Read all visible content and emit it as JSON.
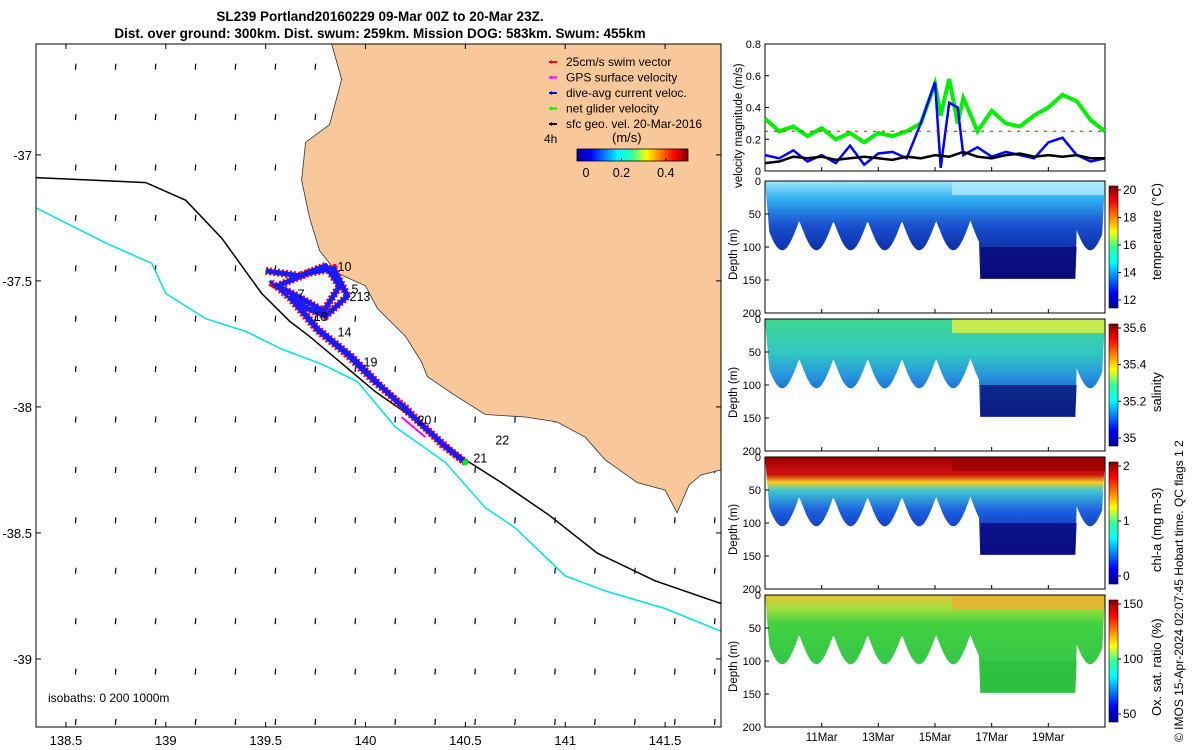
{
  "title": {
    "line1": "SL239 Portland20160229 09-Mar 00Z to 20-Mar 23Z.",
    "line2": "Dist. over ground: 300km. Dist. swum: 259km. Mission DOG: 583km. Swum: 455km"
  },
  "colors": {
    "land": "#f9c89a",
    "swim_vector": "#ff0000",
    "gps_velocity": "#ff00ff",
    "dive_avg_current": "#0000ff",
    "net_glider_velocity": "#00ee00",
    "sfc_geo_vel": "#000000",
    "isobath_200": "#000000",
    "isobath_1000": "#00e0e0",
    "track": "#1a1aff"
  },
  "chart_data": [
    {
      "type": "scatter",
      "name": "map",
      "xlim": [
        138.35,
        141.78
      ],
      "ylim": [
        -39.27,
        -36.56
      ],
      "x_ticks": [
        138.5,
        139,
        139.5,
        140,
        140.5,
        141,
        141.5
      ],
      "x_tick_labels": [
        "138.5",
        "139",
        "139.5",
        "140",
        "140.5",
        "141",
        "141.5"
      ],
      "y_ticks": [
        -37,
        -37.5,
        -38,
        -38.5,
        -39
      ],
      "y_tick_labels": [
        "-37",
        "-37.5",
        "-38",
        "-38.5",
        "-39"
      ],
      "legend": {
        "placement": "top-right",
        "entries": [
          "25cm/s swim vector",
          "GPS surface velocity",
          "dive-avg current veloc.",
          "net glider velocity",
          "sfc geo. vel. 20-Mar-2016"
        ],
        "colors": [
          "#ff0000",
          "#ff00ff",
          "#0000ff",
          "#00ee00",
          "#000000"
        ],
        "marker": "4h"
      },
      "colorbar": {
        "label": "(m/s)",
        "ticks": [
          0,
          0.2,
          0.4
        ],
        "tick_labels": [
          "0",
          "0.2",
          "0.4"
        ],
        "range": [
          0,
          0.5
        ]
      },
      "isobath_text": "isobaths: 0   200   1000m",
      "day_labels": [
        {
          "label": "10",
          "lon": 139.86,
          "lat": -37.46
        },
        {
          "label": "5",
          "lon": 139.93,
          "lat": -37.55
        },
        {
          "label": "213",
          "lon": 139.92,
          "lat": -37.58
        },
        {
          "label": "7",
          "lon": 139.66,
          "lat": -37.57
        },
        {
          "label": "18",
          "lon": 139.74,
          "lat": -37.66
        },
        {
          "label": "14",
          "lon": 139.86,
          "lat": -37.72
        },
        {
          "label": "19",
          "lon": 139.99,
          "lat": -37.84
        },
        {
          "label": "20",
          "lon": 140.26,
          "lat": -38.07
        },
        {
          "label": "22",
          "lon": 140.65,
          "lat": -38.15
        },
        {
          "label": "21",
          "lon": 140.54,
          "lat": -38.22
        }
      ],
      "track": [
        [
          139.5,
          -37.46
        ],
        [
          139.67,
          -37.48
        ],
        [
          139.8,
          -37.44
        ],
        [
          139.87,
          -37.52
        ],
        [
          139.79,
          -37.62
        ],
        [
          139.68,
          -37.57
        ],
        [
          139.56,
          -37.52
        ],
        [
          139.71,
          -37.47
        ],
        [
          139.84,
          -37.45
        ],
        [
          139.91,
          -37.56
        ],
        [
          139.8,
          -37.64
        ],
        [
          139.71,
          -37.61
        ],
        [
          139.62,
          -37.56
        ],
        [
          139.76,
          -37.69
        ],
        [
          139.93,
          -37.8
        ],
        [
          140.08,
          -37.92
        ],
        [
          140.24,
          -38.04
        ],
        [
          140.42,
          -38.17
        ],
        [
          140.5,
          -38.22
        ]
      ],
      "track_return": [
        [
          140.5,
          -38.22
        ],
        [
          140.38,
          -38.15
        ],
        [
          140.2,
          -38.0
        ],
        [
          140.04,
          -37.9
        ],
        [
          139.9,
          -37.79
        ],
        [
          139.76,
          -37.7
        ],
        [
          139.62,
          -37.57
        ],
        [
          139.52,
          -37.5
        ]
      ],
      "coast": [
        [
          139.83,
          -36.56
        ],
        [
          139.88,
          -36.7
        ],
        [
          139.82,
          -36.88
        ],
        [
          139.7,
          -36.95
        ],
        [
          139.68,
          -37.1
        ],
        [
          139.72,
          -37.25
        ],
        [
          139.77,
          -37.38
        ],
        [
          139.86,
          -37.47
        ],
        [
          140.0,
          -37.52
        ],
        [
          140.06,
          -37.61
        ],
        [
          140.2,
          -37.72
        ],
        [
          140.28,
          -37.82
        ],
        [
          140.31,
          -37.88
        ],
        [
          140.44,
          -37.95
        ],
        [
          140.6,
          -38.03
        ],
        [
          140.8,
          -38.04
        ],
        [
          140.96,
          -38.06
        ],
        [
          141.1,
          -38.12
        ],
        [
          141.2,
          -38.21
        ],
        [
          141.36,
          -38.3
        ],
        [
          141.5,
          -38.33
        ],
        [
          141.56,
          -38.42
        ],
        [
          141.62,
          -38.31
        ],
        [
          141.68,
          -38.27
        ],
        [
          141.78,
          -38.25
        ]
      ],
      "isobath_200": [
        [
          138.35,
          -37.09
        ],
        [
          138.9,
          -37.11
        ],
        [
          139.1,
          -37.18
        ],
        [
          139.28,
          -37.33
        ],
        [
          139.48,
          -37.55
        ],
        [
          139.62,
          -37.66
        ],
        [
          139.72,
          -37.72
        ],
        [
          139.9,
          -37.84
        ],
        [
          140.05,
          -37.94
        ],
        [
          140.25,
          -38.05
        ],
        [
          140.5,
          -38.21
        ],
        [
          140.68,
          -38.3
        ],
        [
          140.92,
          -38.43
        ],
        [
          141.16,
          -38.58
        ],
        [
          141.45,
          -38.69
        ],
        [
          141.78,
          -38.78
        ]
      ],
      "isobath_1000": [
        [
          138.35,
          -37.21
        ],
        [
          138.7,
          -37.35
        ],
        [
          138.93,
          -37.43
        ],
        [
          139.0,
          -37.55
        ],
        [
          139.2,
          -37.65
        ],
        [
          139.4,
          -37.7
        ],
        [
          139.58,
          -37.77
        ],
        [
          139.78,
          -37.83
        ],
        [
          139.96,
          -37.9
        ],
        [
          140.15,
          -38.08
        ],
        [
          140.4,
          -38.22
        ],
        [
          140.6,
          -38.4
        ],
        [
          140.75,
          -38.48
        ],
        [
          141.0,
          -38.67
        ],
        [
          141.2,
          -38.73
        ],
        [
          141.5,
          -38.8
        ],
        [
          141.78,
          -38.89
        ]
      ]
    },
    {
      "type": "line",
      "name": "velocity magnitude",
      "ylabel": "velocity magnitude (m/s)",
      "ylim": [
        0,
        0.8
      ],
      "y_ticks": [
        0,
        0.2,
        0.4,
        0.6,
        0.8
      ],
      "y_tick_labels": [
        "0",
        "0.2",
        "0.4",
        "0.6",
        "0.8"
      ],
      "xlim": [
        9,
        21
      ],
      "series": [
        {
          "color": "#00ee00",
          "x": [
            9,
            9.5,
            10,
            10.5,
            11,
            11.5,
            12,
            12.5,
            13,
            13.5,
            14,
            14.5,
            15,
            15.2,
            15.5,
            15.8,
            16,
            16.5,
            17,
            17.5,
            18,
            18.5,
            19,
            19.5,
            20,
            20.5,
            21
          ],
          "values": [
            0.33,
            0.25,
            0.28,
            0.22,
            0.27,
            0.2,
            0.24,
            0.18,
            0.24,
            0.22,
            0.25,
            0.3,
            0.55,
            0.35,
            0.58,
            0.3,
            0.46,
            0.25,
            0.38,
            0.3,
            0.28,
            0.35,
            0.4,
            0.48,
            0.44,
            0.32,
            0.25
          ]
        },
        {
          "color": "#0000ff",
          "x": [
            9,
            9.5,
            10,
            10.5,
            11,
            11.5,
            12,
            12.5,
            13,
            13.5,
            14,
            14.5,
            15,
            15.2,
            15.5,
            15.8,
            16,
            16.5,
            17,
            17.5,
            18,
            18.5,
            19,
            19.5,
            20,
            20.5,
            21
          ],
          "values": [
            0.1,
            0.08,
            0.13,
            0.06,
            0.1,
            0.05,
            0.16,
            0.04,
            0.11,
            0.12,
            0.08,
            0.3,
            0.56,
            0.02,
            0.43,
            0.4,
            0.1,
            0.15,
            0.09,
            0.12,
            0.1,
            0.08,
            0.18,
            0.21,
            0.1,
            0.06,
            0.08
          ]
        },
        {
          "color": "#000000",
          "x": [
            9,
            9.5,
            10,
            10.5,
            11,
            11.5,
            12,
            12.5,
            13,
            13.5,
            14,
            14.5,
            15,
            15.5,
            16,
            16.5,
            17,
            17.5,
            18,
            18.5,
            19,
            19.5,
            20,
            20.5,
            21
          ],
          "values": [
            0.05,
            0.06,
            0.09,
            0.08,
            0.09,
            0.07,
            0.08,
            0.09,
            0.08,
            0.07,
            0.09,
            0.08,
            0.1,
            0.09,
            0.12,
            0.09,
            0.08,
            0.1,
            0.11,
            0.09,
            0.1,
            0.09,
            0.1,
            0.08,
            0.08
          ]
        },
        {
          "color": "#ff0000",
          "x": [
            9,
            21
          ],
          "values": [
            0.25,
            0.25
          ]
        }
      ]
    },
    {
      "type": "heatmap",
      "name": "temperature",
      "ylabel": "Depth (m)",
      "cbar_label": "temperature (°C)",
      "cbar_ticks": [
        "20",
        "18",
        "16",
        "14",
        "12"
      ],
      "ylim": [
        0,
        200
      ],
      "y_tick_labels": [
        "0",
        "50",
        "100",
        "150",
        "200"
      ]
    },
    {
      "type": "heatmap",
      "name": "salinity",
      "ylabel": "Depth (m)",
      "cbar_label": "salinity",
      "cbar_ticks": [
        "35.6",
        "35.4",
        "35.2",
        "35"
      ],
      "ylim": [
        0,
        200
      ],
      "y_tick_labels": [
        "0",
        "50",
        "100",
        "150",
        "200"
      ]
    },
    {
      "type": "heatmap",
      "name": "chl-a",
      "ylabel": "Depth (m)",
      "cbar_label": "chl-a (mg m-3)",
      "cbar_ticks": [
        "2",
        "1",
        "0"
      ],
      "ylim": [
        0,
        200
      ],
      "y_tick_labels": [
        "0",
        "50",
        "100",
        "150",
        "200"
      ]
    },
    {
      "type": "heatmap",
      "name": "oxygen",
      "ylabel": "Depth (m)",
      "cbar_label": "Ox. sat. ratio (%)",
      "cbar_ticks": [
        "150",
        "100",
        "50"
      ],
      "ylim": [
        0,
        200
      ],
      "y_tick_labels": [
        "0",
        "50",
        "100",
        "150",
        "200"
      ],
      "x_tick_labels": [
        "11Mar",
        "13Mar",
        "15Mar",
        "17Mar",
        "19Mar"
      ]
    }
  ],
  "credit": "© IMOS 15-Apr-2024 02:07:45 Hobart time. QC flags 1  2"
}
